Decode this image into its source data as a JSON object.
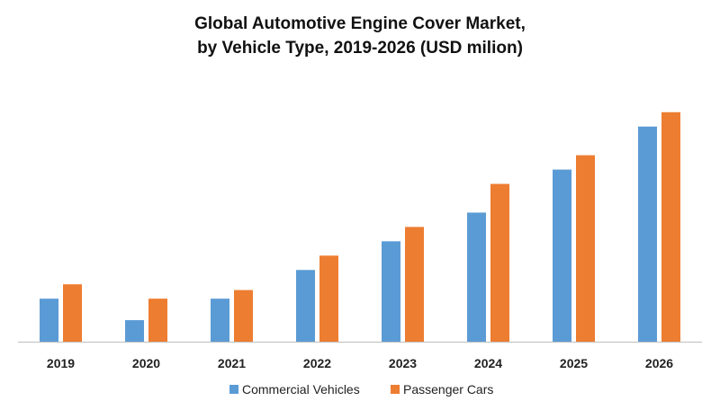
{
  "chart_data": {
    "type": "bar",
    "title": "Global Automotive Engine Cover Market,",
    "subtitle": "by Vehicle Type, 2019-2026 (USD milion)",
    "categories": [
      "2019",
      "2020",
      "2021",
      "2022",
      "2023",
      "2024",
      "2025",
      "2026"
    ],
    "series": [
      {
        "name": "Commercial Vehicles",
        "color": "#5B9BD5",
        "values": [
          3,
          1.5,
          3,
          5,
          7,
          9,
          12,
          15
        ]
      },
      {
        "name": "Passenger Cars",
        "color": "#ED7D31",
        "values": [
          4,
          3,
          3.6,
          6,
          8,
          11,
          13,
          16
        ]
      }
    ],
    "xlabel": "",
    "ylabel": "",
    "ylim": [
      0,
      16.3
    ],
    "grid": false,
    "legend": "bottom-center"
  }
}
